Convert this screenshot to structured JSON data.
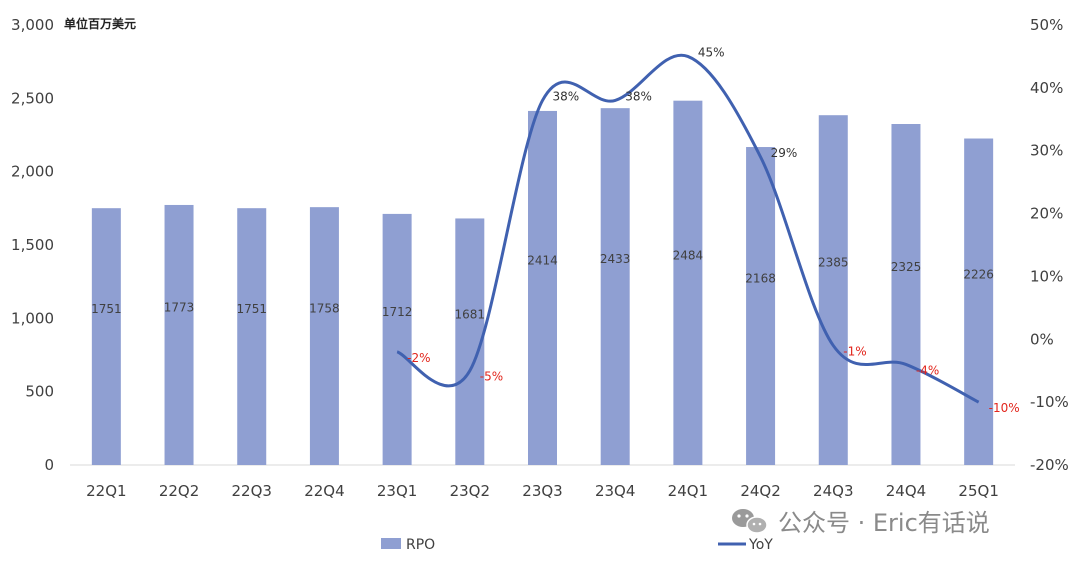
{
  "colors": {
    "bar": "#8f9fd2",
    "line": "#4061b0",
    "negative": "#e2261d",
    "positive": "#333333",
    "axis": "#d9d9d9"
  },
  "chart_data": {
    "type": "bar",
    "unit_label": "单位百万美元",
    "categories": [
      "22Q1",
      "22Q2",
      "22Q3",
      "22Q4",
      "23Q1",
      "23Q2",
      "23Q3",
      "23Q4",
      "24Q1",
      "24Q2",
      "24Q3",
      "24Q4",
      "25Q1"
    ],
    "series": [
      {
        "name": "RPO",
        "type": "bar",
        "axis": "left",
        "values": [
          1751,
          1773,
          1751,
          1758,
          1712,
          1681,
          2414,
          2433,
          2484,
          2168,
          2385,
          2325,
          2226
        ]
      },
      {
        "name": "YoY",
        "type": "line",
        "axis": "right",
        "values": [
          null,
          null,
          null,
          null,
          -2,
          -5,
          38,
          38,
          45,
          29,
          -1,
          -4,
          -10
        ],
        "labels": [
          "",
          "",
          "",
          "",
          "-2%",
          "-5%",
          "38%",
          "38%",
          "45%",
          "29%",
          "-1%",
          "-4%",
          "-10%"
        ]
      }
    ],
    "y_left": {
      "min": 0,
      "max": 3000,
      "ticks": [
        "0",
        "500",
        "1,000",
        "1,500",
        "2,000",
        "2,500",
        "3,000"
      ]
    },
    "y_right": {
      "min": -20,
      "max": 50,
      "ticks": [
        "-20%",
        "-10%",
        "0%",
        "10%",
        "20%",
        "30%",
        "40%",
        "50%"
      ]
    },
    "legend": {
      "position": "bottom",
      "items": [
        "RPO",
        "YoY"
      ]
    },
    "grid": false
  },
  "watermark": "公众号 · Eric有话说"
}
